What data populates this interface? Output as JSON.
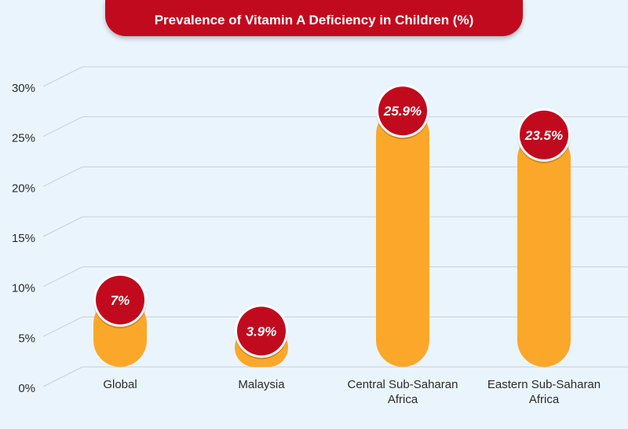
{
  "chart_data": {
    "type": "bar",
    "title": "Prevalence of Vitamin A Deficiency in Children (%)",
    "categories": [
      "Global",
      "Malaysia",
      "Central Sub-Saharan Africa",
      "Eastern Sub-Saharan Africa"
    ],
    "category_lines": [
      [
        "Global"
      ],
      [
        "Malaysia"
      ],
      [
        "Central Sub-Saharan",
        "Africa"
      ],
      [
        "Eastern Sub-Saharan",
        "Africa"
      ]
    ],
    "values": [
      7,
      3.9,
      25.9,
      23.5
    ],
    "value_labels": [
      "7%",
      "3.9%",
      "25.9%",
      "23.5%"
    ],
    "yticks": [
      "0%",
      "5%",
      "10%",
      "15%",
      "20%",
      "25%",
      "30%"
    ],
    "ylim": [
      0,
      30
    ],
    "grid": true,
    "legend": "none",
    "colors": {
      "bar": "#fba82a",
      "label_badge": "#c20a1e",
      "title_bg": "#c20a1e"
    }
  }
}
